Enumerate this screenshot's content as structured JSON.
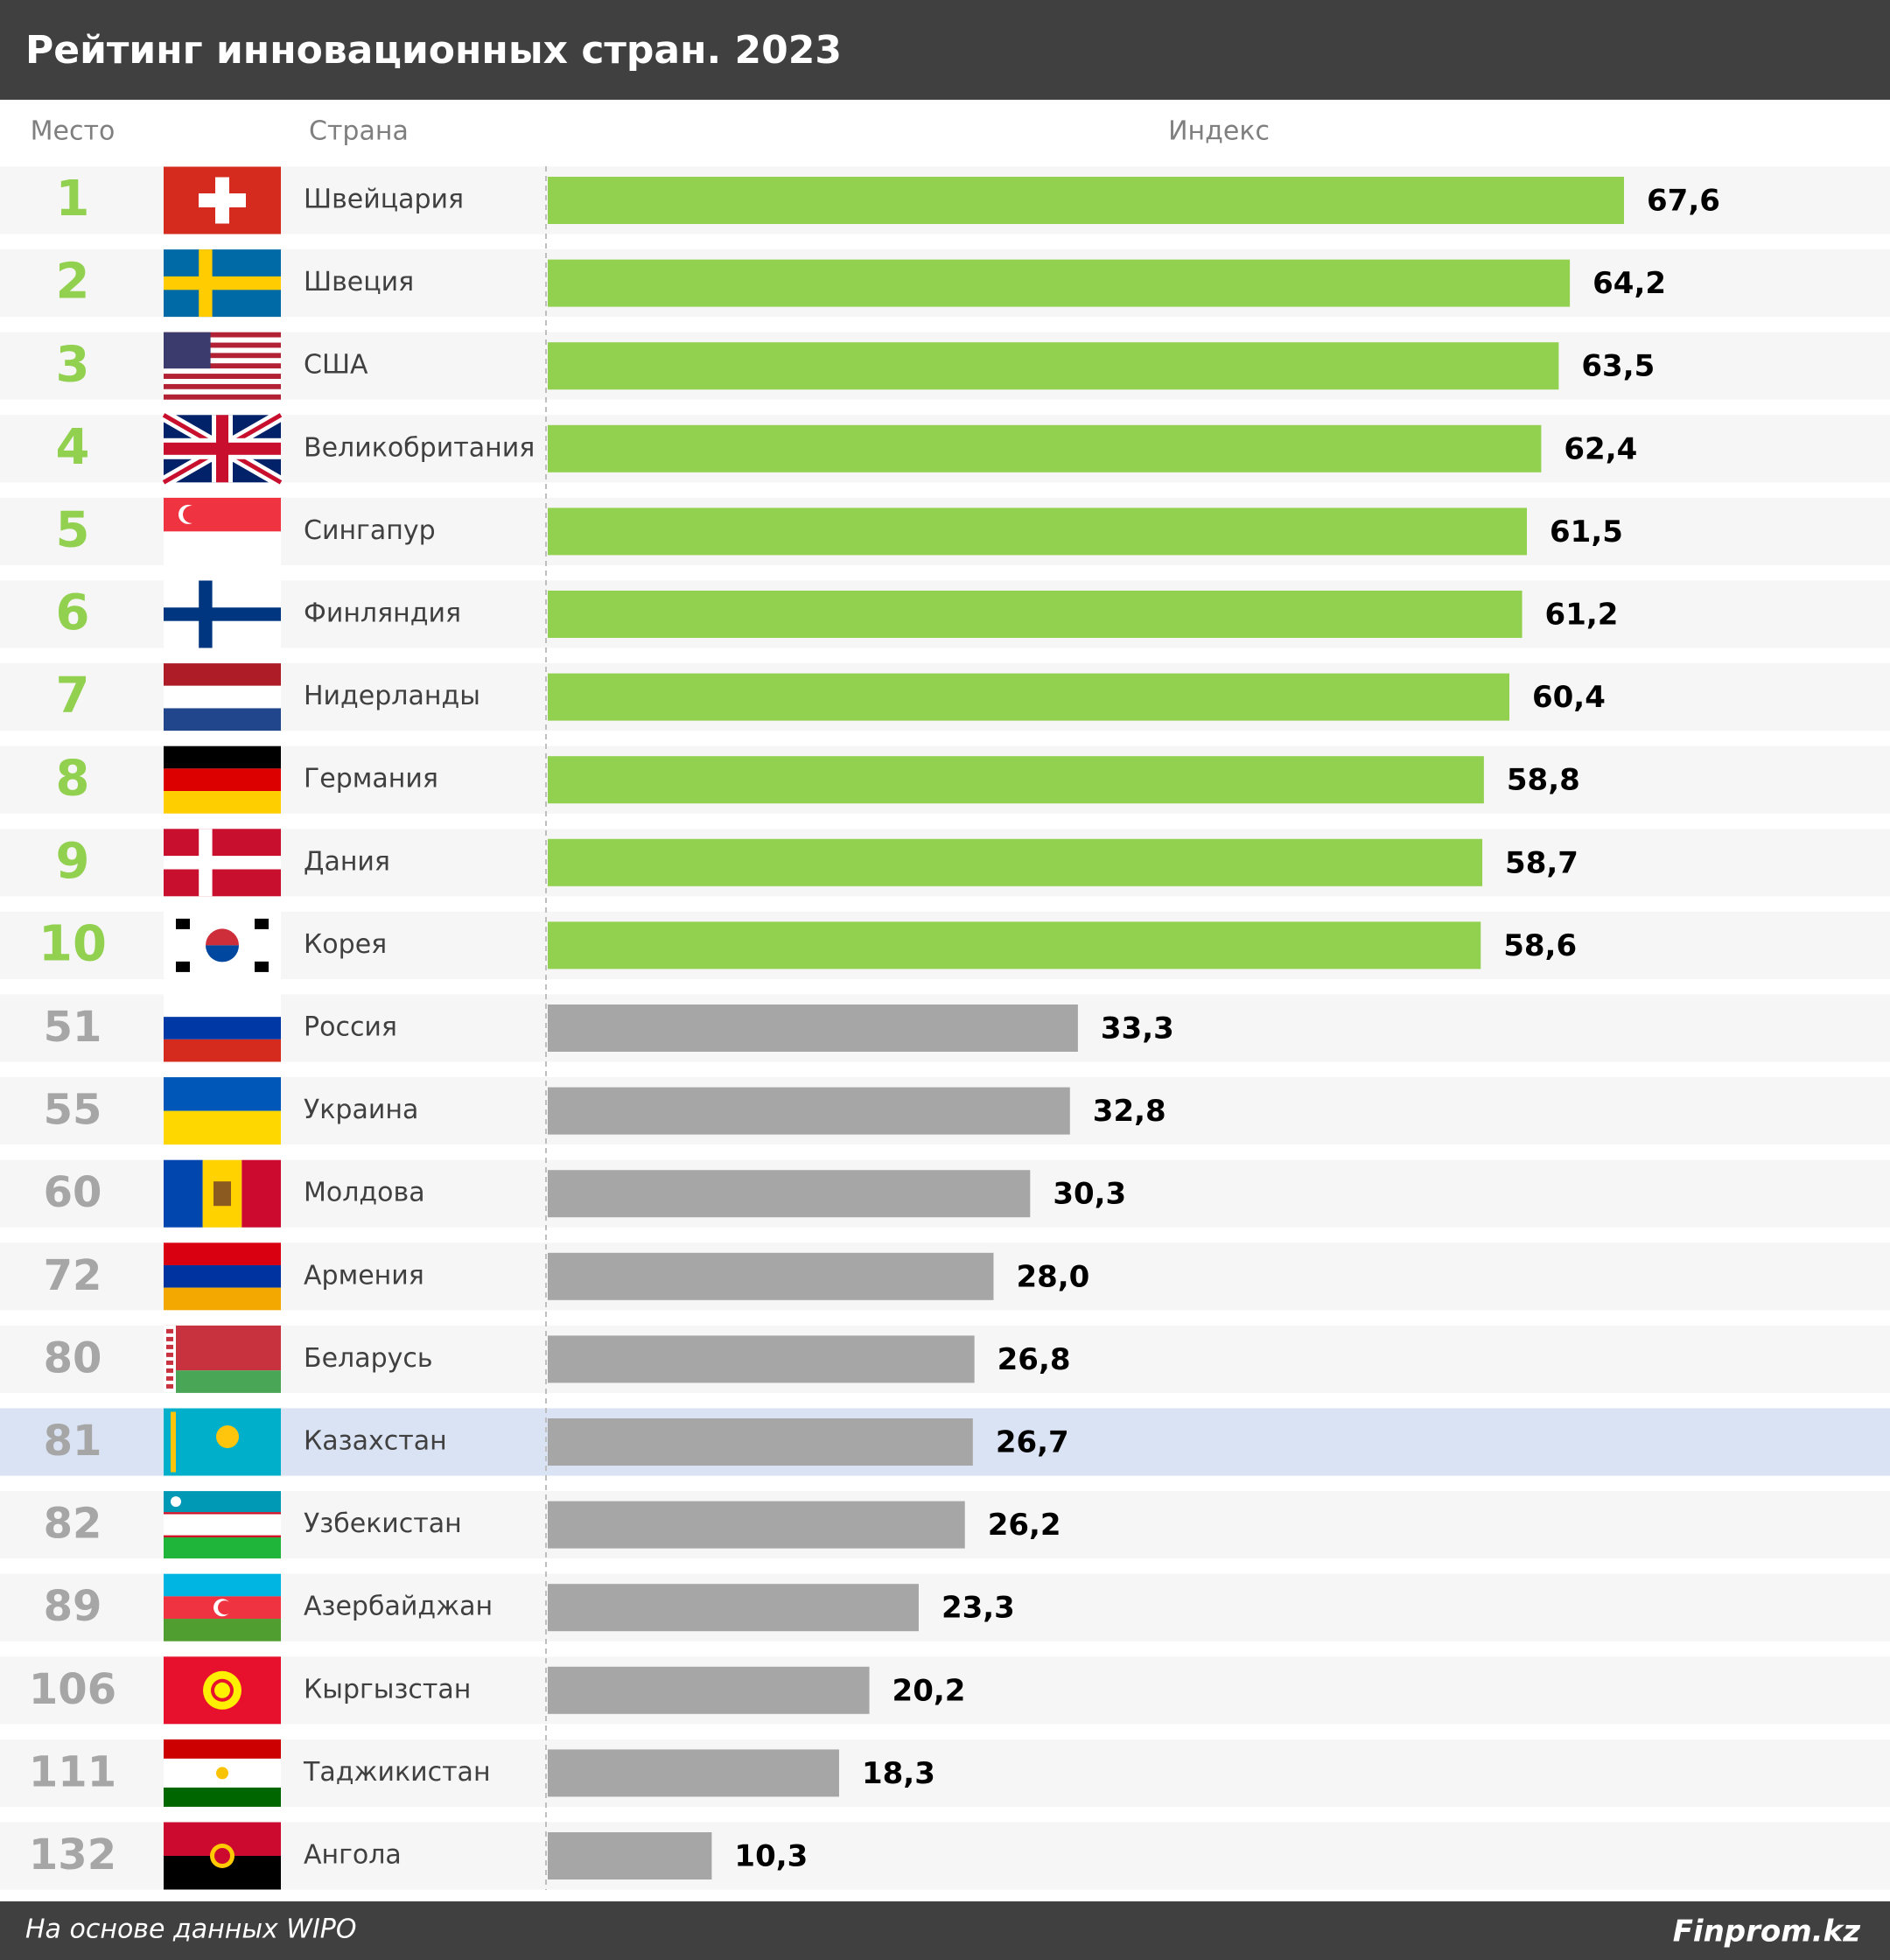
{
  "chart_data": {
    "type": "bar",
    "title": "Рейтинг инновационных стран. 2023",
    "rank_header": "Место",
    "category_header": "Страна",
    "value_header": "Индекс",
    "ranks": [
      1,
      2,
      3,
      4,
      5,
      6,
      7,
      8,
      9,
      10,
      51,
      55,
      60,
      72,
      80,
      81,
      82,
      89,
      106,
      111,
      132
    ],
    "categories": [
      "Швейцария",
      "Швеция",
      "США",
      "Великобритания",
      "Сингапур",
      "Финляндия",
      "Нидерланды",
      "Германия",
      "Дания",
      "Корея",
      "Россия",
      "Украина",
      "Молдова",
      "Армения",
      "Беларусь",
      "Казахстан",
      "Узбекистан",
      "Азербайджан",
      "Кыргызстан",
      "Таджикистан",
      "Ангола"
    ],
    "values": [
      67.6,
      64.2,
      63.5,
      62.4,
      61.5,
      61.2,
      60.4,
      58.8,
      58.7,
      58.6,
      33.3,
      32.8,
      30.3,
      28.0,
      26.8,
      26.7,
      26.2,
      23.3,
      20.2,
      18.3,
      10.3
    ],
    "value_labels": [
      "67,6",
      "64,2",
      "63,5",
      "62,4",
      "61,5",
      "61,2",
      "60,4",
      "58,8",
      "58,7",
      "58,6",
      "33,3",
      "32,8",
      "30,3",
      "28,0",
      "26,8",
      "26,7",
      "26,2",
      "23,3",
      "20,2",
      "18,3",
      "10,3"
    ],
    "colors": [
      "#92d050",
      "#92d050",
      "#92d050",
      "#92d050",
      "#92d050",
      "#92d050",
      "#92d050",
      "#92d050",
      "#92d050",
      "#92d050",
      "#a6a6a6",
      "#a6a6a6",
      "#a6a6a6",
      "#a6a6a6",
      "#a6a6a6",
      "#a6a6a6",
      "#a6a6a6",
      "#a6a6a6",
      "#a6a6a6",
      "#a6a6a6",
      "#a6a6a6"
    ],
    "highlight": "Казахстан",
    "highlight_color": "#dae3f3",
    "source": "На основе данных WIPO",
    "brand": "Finprom.kz"
  }
}
